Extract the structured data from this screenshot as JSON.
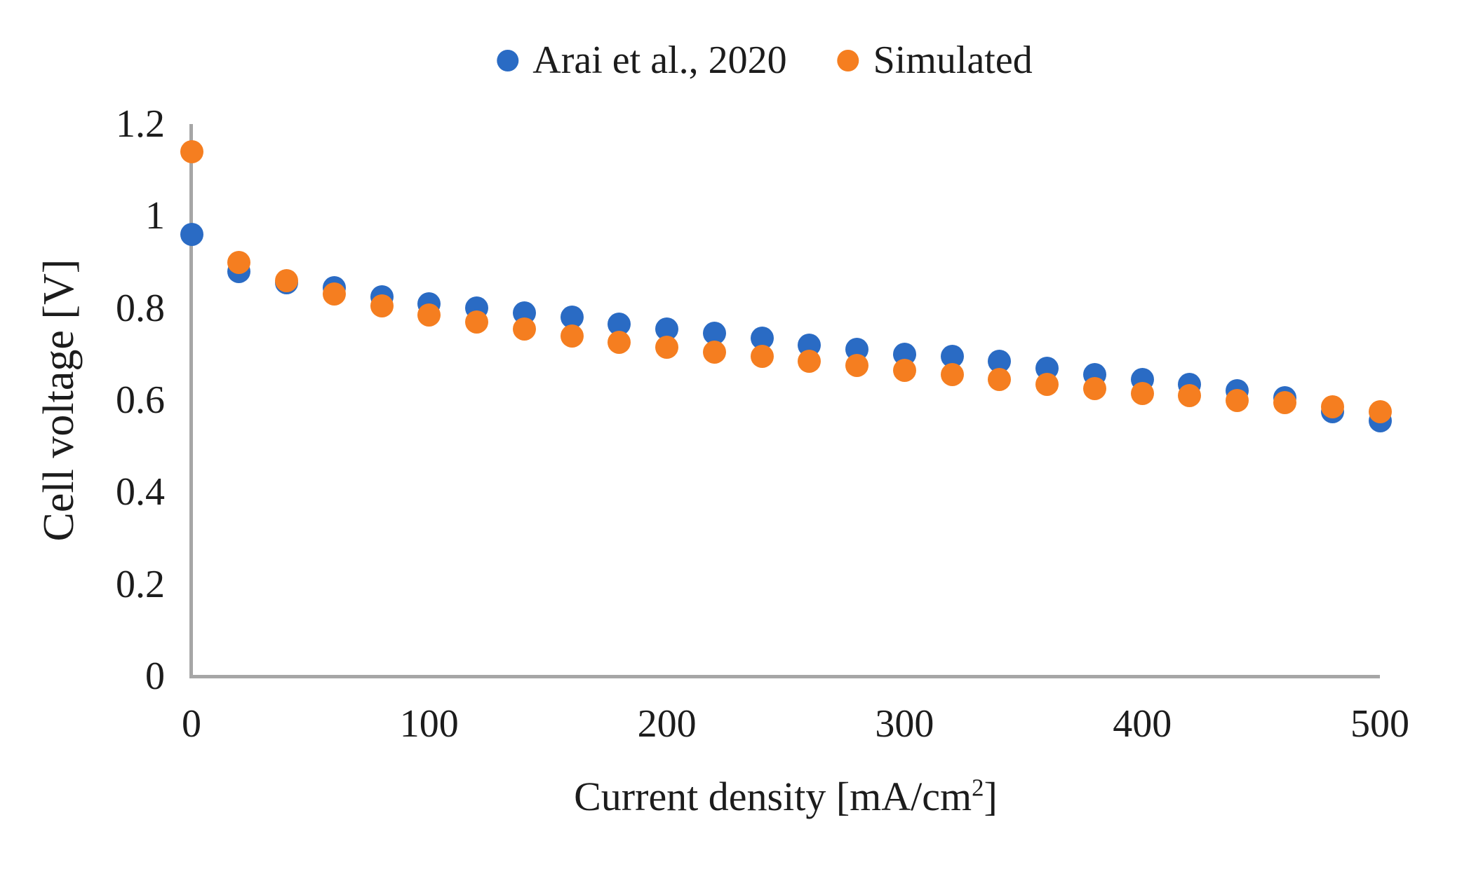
{
  "figure": {
    "background": "#ffffff",
    "text_color": "#1c1c1c"
  },
  "legend": {
    "items": [
      {
        "label": "Arai et al., 2020",
        "color": "#2a6bc4"
      },
      {
        "label": "Simulated",
        "color": "#f57e20"
      }
    ]
  },
  "axes": {
    "ylabel": "Cell voltage [V]",
    "xlabel": "Current density [mA/cm²]",
    "xlabel_parts": {
      "pre": "Current density [mA/cm",
      "sup": "2",
      "post": "]"
    },
    "axis_color": "#a6a6a6",
    "x_tick_labels": [
      "0",
      "100",
      "200",
      "300",
      "400",
      "500"
    ],
    "y_tick_labels": [
      "0",
      "0.2",
      "0.4",
      "0.6",
      "0.8",
      "1",
      "1.2"
    ]
  },
  "chart_data": {
    "type": "scatter",
    "title": "",
    "xlabel": "Current density [mA/cm²]",
    "ylabel": "Cell voltage [V]",
    "xlim": [
      0,
      500
    ],
    "ylim": [
      0,
      1.2
    ],
    "x_ticks": [
      0,
      100,
      200,
      300,
      400,
      500
    ],
    "y_ticks": [
      0,
      0.2,
      0.4,
      0.6,
      0.8,
      1.0,
      1.2
    ],
    "grid": false,
    "legend_position": "top-center",
    "x": [
      0,
      20,
      40,
      60,
      80,
      100,
      120,
      140,
      160,
      180,
      200,
      220,
      240,
      260,
      280,
      300,
      320,
      340,
      360,
      380,
      400,
      420,
      440,
      460,
      480,
      500
    ],
    "series": [
      {
        "name": "Arai et al., 2020",
        "color": "#2a6bc4",
        "values": [
          0.96,
          0.88,
          0.855,
          0.845,
          0.825,
          0.81,
          0.8,
          0.79,
          0.78,
          0.765,
          0.755,
          0.745,
          0.735,
          0.72,
          0.71,
          0.7,
          0.695,
          0.685,
          0.67,
          0.655,
          0.645,
          0.635,
          0.62,
          0.605,
          0.575,
          0.555
        ]
      },
      {
        "name": "Simulated",
        "color": "#f57e20",
        "values": [
          1.14,
          0.9,
          0.86,
          0.83,
          0.805,
          0.785,
          0.77,
          0.755,
          0.74,
          0.725,
          0.715,
          0.705,
          0.695,
          0.685,
          0.675,
          0.665,
          0.655,
          0.645,
          0.635,
          0.625,
          0.615,
          0.61,
          0.6,
          0.595,
          0.585,
          0.575
        ]
      }
    ]
  }
}
